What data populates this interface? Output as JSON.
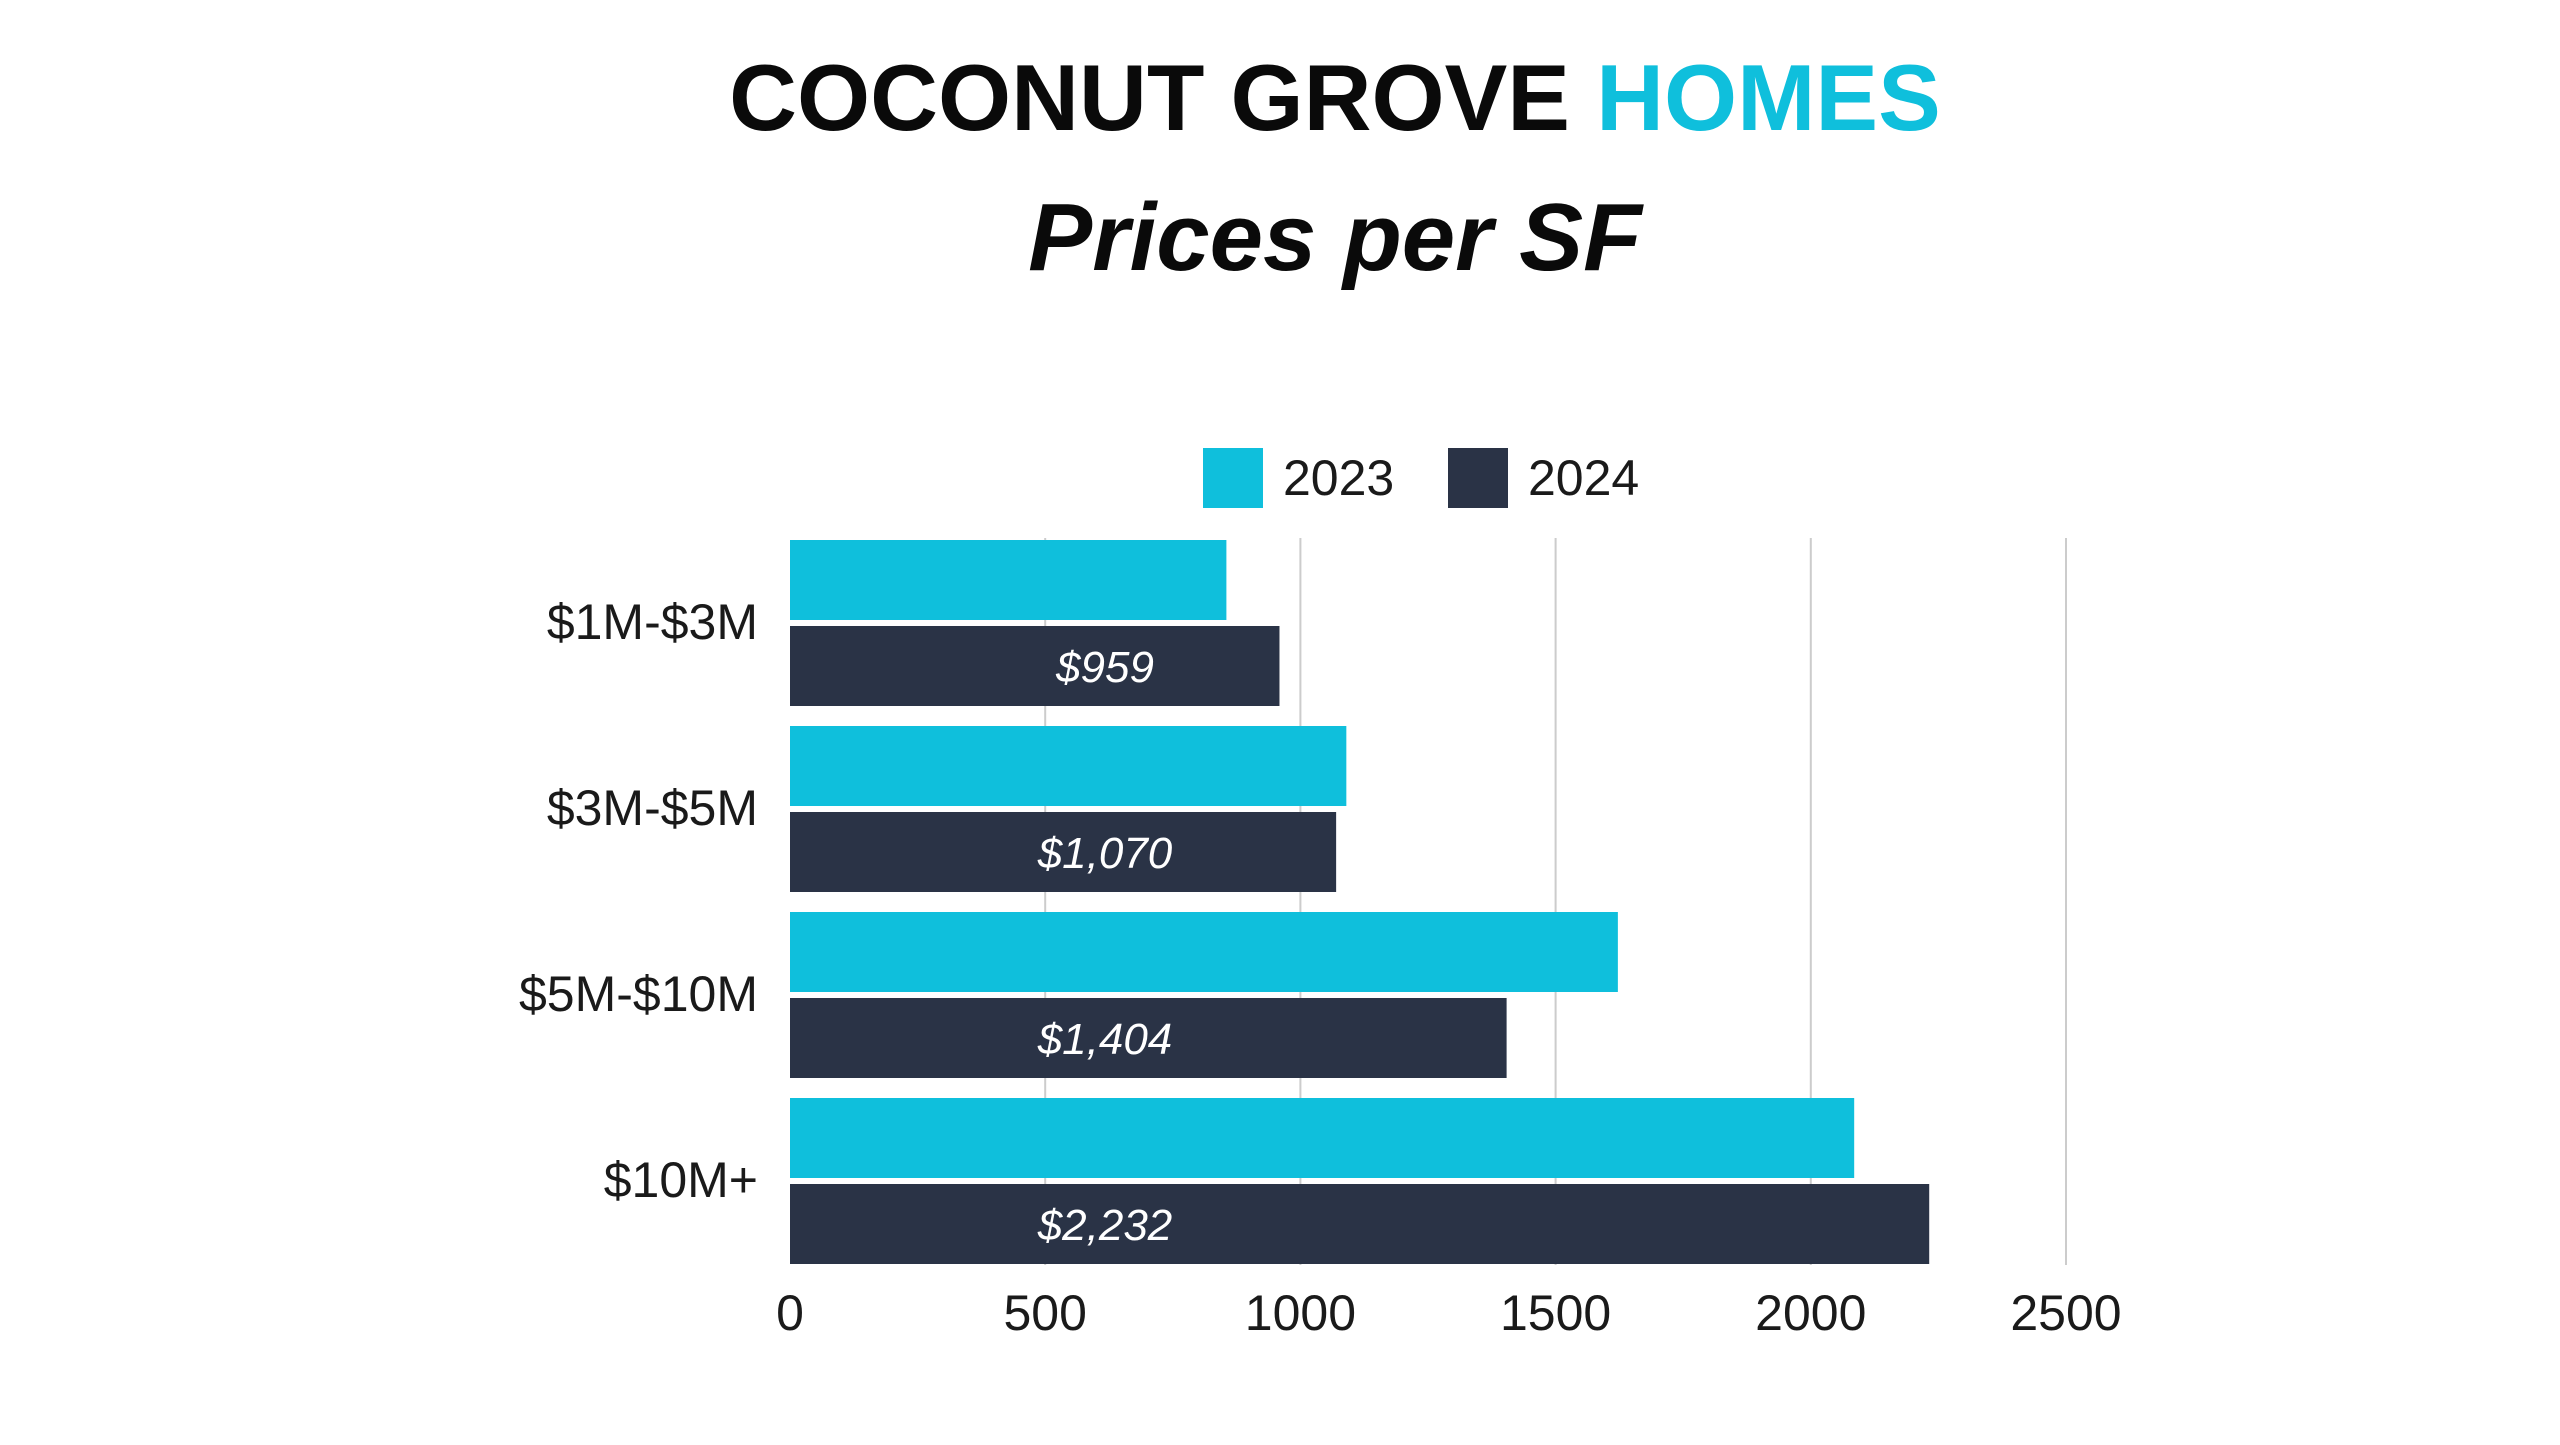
{
  "title": {
    "part1": "COCONUT GROVE ",
    "part2": "HOMES",
    "subtitle": "Prices per SF"
  },
  "colors": {
    "accent": "#0fbfdc",
    "dark": "#2a3346",
    "title": "#0a0a0a",
    "grid": "#cccccc",
    "label_text": "#ffffff"
  },
  "chart_data": {
    "type": "bar",
    "orientation": "horizontal",
    "categories": [
      "$1M-$3M",
      "$3M-$5M",
      "$5M-$10M",
      "$10M+"
    ],
    "series": [
      {
        "name": "2023",
        "color": "#0fbfdc",
        "values": [
          855,
          1090,
          1622,
          2085
        ]
      },
      {
        "name": "2024",
        "color": "#2a3346",
        "values": [
          959,
          1070,
          1404,
          2232
        ]
      }
    ],
    "data_labels": {
      "2024": [
        "$959",
        "$1,070",
        "$1,404",
        "$2,232"
      ]
    },
    "xlim": [
      0,
      2500
    ],
    "xticks": [
      "0",
      "500",
      "1000",
      "1500",
      "2000",
      "2500"
    ],
    "grid": true,
    "legend_position": "top"
  }
}
